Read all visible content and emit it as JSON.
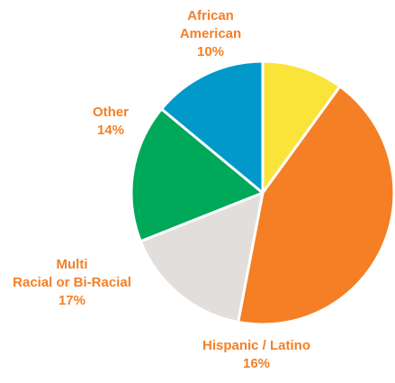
{
  "chart_data": {
    "type": "pie",
    "slices": [
      {
        "label_lines": [
          "African",
          "American"
        ],
        "value": 10,
        "value_label": "10%",
        "color": "#fbe43a"
      },
      {
        "label_lines": [],
        "value": 43,
        "value_label": "",
        "color": "#f47f25"
      },
      {
        "label_lines": [
          "Hispanic / Latino"
        ],
        "value": 16,
        "value_label": "16%",
        "color": "#e2dedb"
      },
      {
        "label_lines": [
          "Multi",
          "Racial or Bi-Racial"
        ],
        "value": 17,
        "value_label": "17%",
        "color": "#00a85a"
      },
      {
        "label_lines": [
          "Other"
        ],
        "value": 14,
        "value_label": "14%",
        "color": "#0099c9"
      }
    ],
    "label_color": "#f47f25",
    "separator_color": "#ffffff"
  }
}
